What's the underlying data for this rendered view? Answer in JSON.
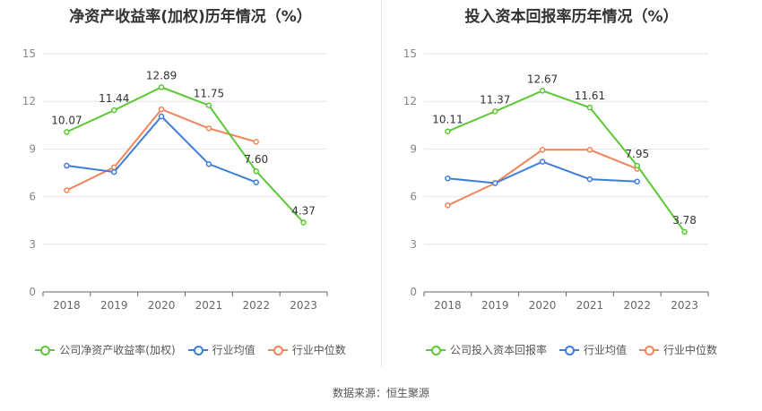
{
  "footer": "数据来源：恒生聚源",
  "chart_data": [
    {
      "type": "line",
      "title": "净资产收益率(加权)历年情况（%）",
      "categories": [
        "2018",
        "2019",
        "2020",
        "2021",
        "2022",
        "2023"
      ],
      "ylim": [
        0,
        15
      ],
      "yticks": [
        0,
        3,
        6,
        9,
        12,
        15
      ],
      "grid": true,
      "legend_position": "bottom",
      "series": [
        {
          "name": "公司净资产收益率(加权)",
          "color": "#5bc834",
          "values": [
            10.07,
            11.44,
            12.89,
            11.75,
            7.6,
            4.37
          ],
          "labels": [
            "10.07",
            "11.44",
            "12.89",
            "11.75",
            "7.60",
            "4.37"
          ]
        },
        {
          "name": "行业均值",
          "color": "#3f7ed8",
          "values": [
            7.95,
            7.55,
            11.05,
            8.05,
            6.9,
            null
          ]
        },
        {
          "name": "行业中位数",
          "color": "#f0845a",
          "values": [
            6.4,
            7.85,
            11.5,
            10.3,
            9.45,
            null
          ]
        }
      ]
    },
    {
      "type": "line",
      "title": "投入资本回报率历年情况（%）",
      "categories": [
        "2018",
        "2019",
        "2020",
        "2021",
        "2022",
        "2023"
      ],
      "ylim": [
        0,
        15
      ],
      "yticks": [
        0,
        3,
        6,
        9,
        12,
        15
      ],
      "grid": true,
      "legend_position": "bottom",
      "series": [
        {
          "name": "公司投入资本回报率",
          "color": "#5bc834",
          "values": [
            10.11,
            11.37,
            12.67,
            11.61,
            7.95,
            3.78
          ],
          "labels": [
            "10.11",
            "11.37",
            "12.67",
            "11.61",
            "7.95",
            "3.78"
          ]
        },
        {
          "name": "行业均值",
          "color": "#3f7ed8",
          "values": [
            7.15,
            6.85,
            8.2,
            7.1,
            6.95,
            null
          ]
        },
        {
          "name": "行业中位数",
          "color": "#f0845a",
          "values": [
            5.45,
            6.85,
            8.95,
            8.95,
            7.75,
            null
          ]
        }
      ]
    }
  ]
}
